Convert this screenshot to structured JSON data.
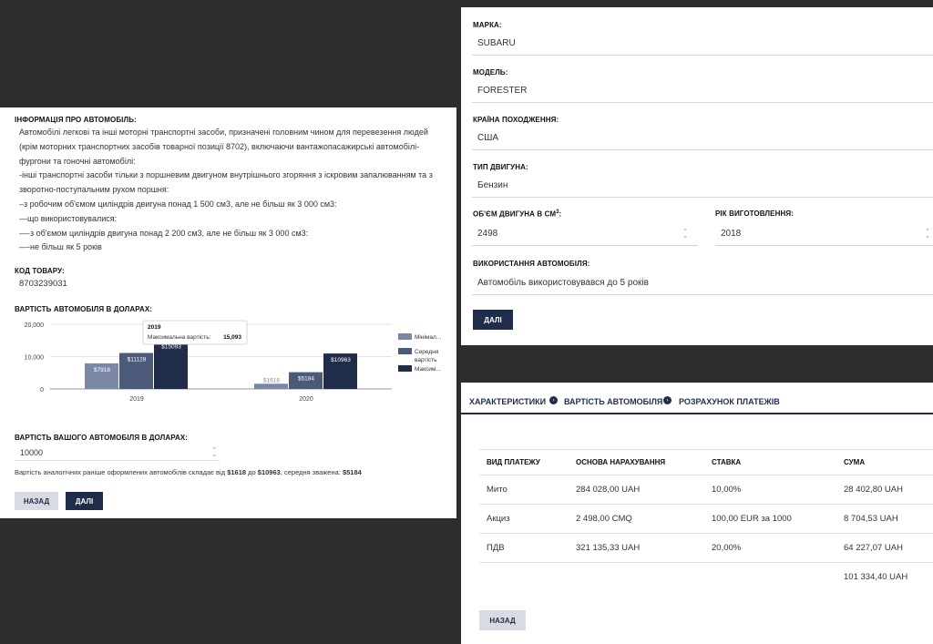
{
  "left": {
    "info_label": "ІНФОРМАЦІЯ ПРО АВТОМОБІЛЬ:",
    "info_lines": [
      "Автомобілі легкові та інші моторні транспортні засоби, призначені головним чином для перевезення людей",
      "(крім моторних транспортних засобів товарної позиції 8702), включаючи вантажопасажирські автомобілі-",
      "фургони та гоночні автомобілі:",
      "-інші транспортні засоби тільки з поршневим двигуном внутрішнього згоряння з іскровим запалюванням та з",
      "зворотно-поступальним рухом поршня:",
      "–з робочим об'ємом циліндрів двигуна понад 1 500 см3, але не більш як 3 000 см3:",
      "—що використовувалися:",
      "—-з об'ємом циліндрів двигуна понад 2 200 см3, але не більш як 3 000 см3:",
      "—-не більш як 5 років"
    ],
    "code_label": "КОД ТОВАРУ:",
    "code_value": "8703239031",
    "chart_label": "ВАРТІСТЬ АВТОМОБІЛЯ В ДОЛАРАХ:",
    "your_value_label": "ВАРТІСТЬ ВАШОГО АВТОМОБІЛЯ В ДОЛАРАХ:",
    "your_value": "10000",
    "note_prefix": "Вартість аналогічних раніше оформлених автомобілів складає від",
    "note_min": "$1618",
    "note_mid": "до",
    "note_max": "$10963",
    "note_avg_prefix": ", середня зважена:",
    "note_avg": "$5184",
    "back_label": "НАЗАД",
    "next_label": "ДАЛІ"
  },
  "chart_data": {
    "type": "bar",
    "categories": [
      "2019",
      "2020"
    ],
    "series": [
      {
        "name": "Мінімал...",
        "values": [
          7918,
          1618
        ],
        "labels": [
          "$7918",
          "$1618"
        ],
        "color": "#7a88a6"
      },
      {
        "name": "Середня вартість",
        "values": [
          11128,
          5184
        ],
        "labels": [
          "$11128",
          "$5184"
        ],
        "color": "#4c5a7a"
      },
      {
        "name": "Максим...",
        "values": [
          15093,
          10963
        ],
        "labels": [
          "$15093",
          "$10963"
        ],
        "color": "#1f2d4a"
      }
    ],
    "yticks": [
      "20,000",
      "10,000",
      "0"
    ],
    "ylim": [
      0,
      20000
    ],
    "grid": true,
    "legend": "right",
    "tooltip": {
      "title": "2019",
      "label": "Максимальна вартість:",
      "value": "15,093"
    }
  },
  "right_top": {
    "fields": [
      {
        "label": "МАРКА:",
        "value": "SUBARU"
      },
      {
        "label": "МОДЕЛЬ:",
        "value": "FORESTER"
      },
      {
        "label": "КРАЇНА ПОХОДЖЕННЯ:",
        "value": "США"
      },
      {
        "label": "ТИП ДВИГУНА:",
        "value": "Бензин"
      }
    ],
    "volume_label": "ОБ'ЄМ ДВИГУНА В СМ",
    "volume_sup": "3",
    "volume_colon": ":",
    "volume_value": "2498",
    "year_label": "РІК ВИГОТОВЛЕННЯ:",
    "year_value": "2018",
    "usage_label": "ВИКОРИСТАННЯ АВТОМОБІЛЯ:",
    "usage_value": "Автомобіль використовувався до 5 років",
    "next_label": "ДАЛІ"
  },
  "right_bottom": {
    "breadcrumbs": [
      "ХАРАКТЕРИСТИКИ",
      "ВАРТІСТЬ АВТОМОБІЛЯ",
      "РОЗРАХУНОК ПЛАТЕЖІВ"
    ],
    "headers": [
      "ВИД ПЛАТЕЖУ",
      "ОСНОВА НАРАХУВАННЯ",
      "СТАВКА",
      "СУМА"
    ],
    "rows": [
      [
        "Мито",
        "284 028,00 UAH",
        "10,00%",
        "28 402,80 UAH"
      ],
      [
        "Акциз",
        "2 498,00 CMQ",
        "100,00 EUR за 1000",
        "8 704,53 UAH"
      ],
      [
        "ПДВ",
        "321 135,33 UAH",
        "20,00%",
        "64 227,07 UAH"
      ]
    ],
    "total": "101 334,40 UAH",
    "back_label": "НАЗАД"
  }
}
